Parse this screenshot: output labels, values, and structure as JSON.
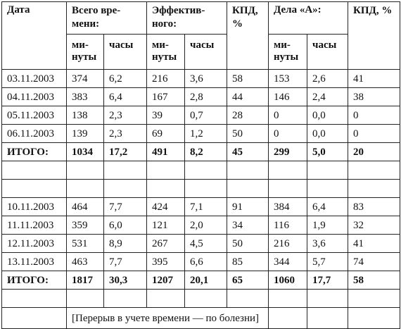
{
  "header": {
    "date": "Дата",
    "total_time": "Всего вре-мени:",
    "effective": "Эффектив-ного:",
    "kpd1": "КПД, %",
    "dela_a": "Дела «А»:",
    "kpd2": "КПД, %",
    "minutes": "ми-нуты",
    "hours": "часы"
  },
  "week1": [
    [
      "03.11.2003",
      "374",
      "6,2",
      "216",
      "3,6",
      "58",
      "153",
      "2,6",
      "41"
    ],
    [
      "04.11.2003",
      "383",
      "6,4",
      "167",
      "2,8",
      "44",
      "146",
      "2,4",
      "38"
    ],
    [
      "05.11.2003",
      "138",
      "2,3",
      "39",
      "0,7",
      "28",
      "0",
      "0,0",
      "0"
    ],
    [
      "06.11.2003",
      "139",
      "2,3",
      "69",
      "1,2",
      "50",
      "0",
      "0,0",
      "0"
    ]
  ],
  "total1": [
    "ИТОГО:",
    "1034",
    "17,2",
    "491",
    "8,2",
    "45",
    "299",
    "5,0",
    "20"
  ],
  "week2": [
    [
      "10.11.2003",
      "464",
      "7,7",
      "424",
      "7,1",
      "91",
      "384",
      "6,4",
      "83"
    ],
    [
      "11.11.2003",
      "359",
      "6,0",
      "121",
      "2,0",
      "34",
      "116",
      "1,9",
      "32"
    ],
    [
      "12.11.2003",
      "531",
      "8,9",
      "267",
      "4,5",
      "50",
      "216",
      "3,6",
      "41"
    ],
    [
      "13.11.2003",
      "463",
      "7,7",
      "395",
      "6,6",
      "85",
      "344",
      "5,7",
      "74"
    ]
  ],
  "total2": [
    "ИТОГО:",
    "1817",
    "30,3",
    "1207",
    "20,1",
    "65",
    "1060",
    "17,7",
    "58"
  ],
  "note": "[Перерыв в учете времени — по болезни]"
}
